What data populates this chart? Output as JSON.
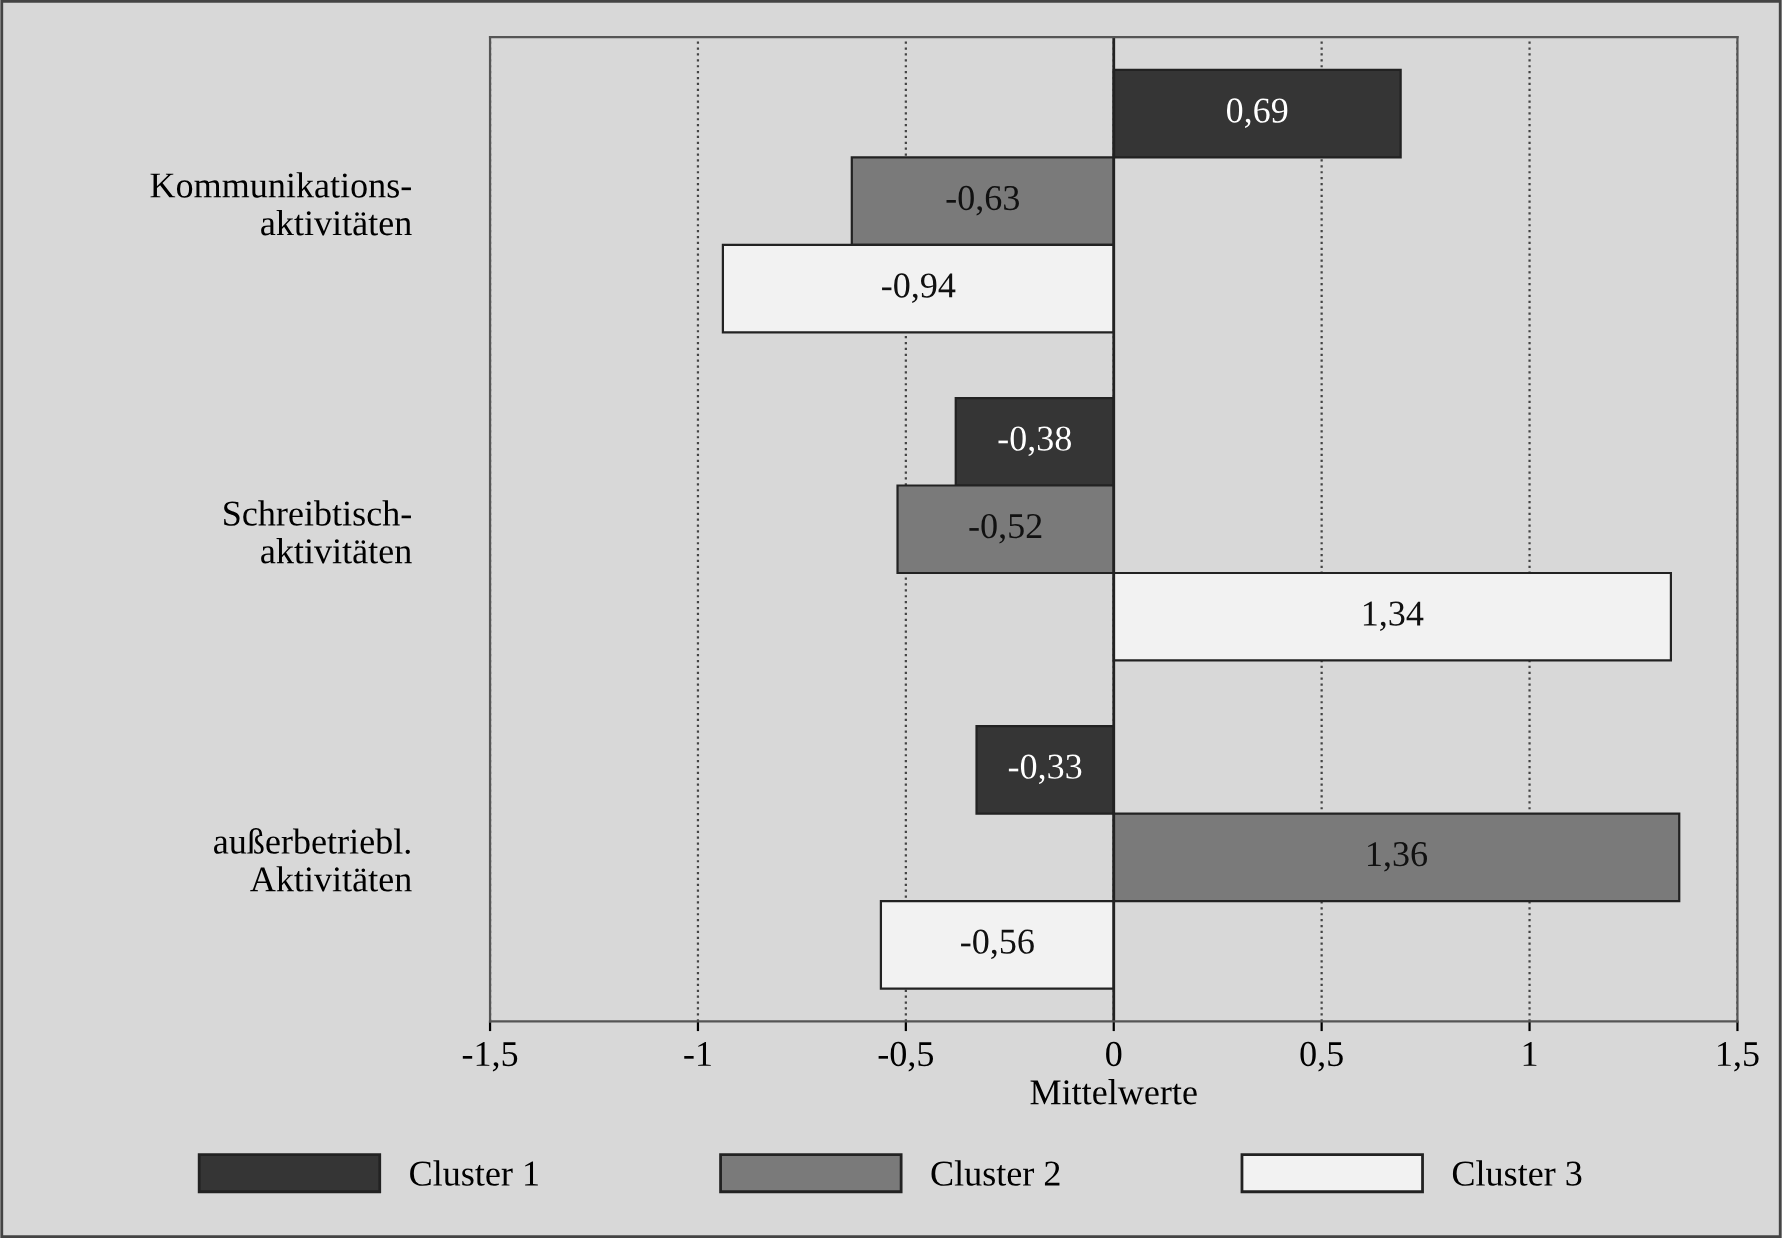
{
  "chart_data": {
    "type": "bar",
    "orientation": "horizontal",
    "xlabel": "Mittelwerte",
    "categories": [
      "Kommunikations-\naktivitäten",
      "Schreibtisch-\naktivitäten",
      "außerbetriebl.\nAktivitäten"
    ],
    "series": [
      {
        "name": "Cluster 1",
        "color": "#353535",
        "values": [
          0.69,
          -0.38,
          -0.33
        ],
        "value_labels": [
          "0,69",
          "-0,38",
          "-0,33"
        ]
      },
      {
        "name": "Cluster 2",
        "color": "#7a7a7a",
        "values": [
          -0.63,
          -0.52,
          1.36
        ],
        "value_labels": [
          "-0,63",
          "-0,52",
          "1,36"
        ]
      },
      {
        "name": "Cluster 3",
        "color": "#f2f2f2",
        "values": [
          -0.94,
          1.34,
          -0.56
        ],
        "value_labels": [
          "-0,94",
          "1,34",
          "-0,56"
        ]
      }
    ],
    "xlim": [
      -1.5,
      1.5
    ],
    "xticks": [
      {
        "value": -1.5,
        "label": "-1,5"
      },
      {
        "value": -1,
        "label": "-1"
      },
      {
        "value": -0.5,
        "label": "-0,5"
      },
      {
        "value": 0,
        "label": "0"
      },
      {
        "value": 0.5,
        "label": "0,5"
      },
      {
        "value": 1,
        "label": "1"
      },
      {
        "value": 1.5,
        "label": "1,5"
      }
    ],
    "grid": "x",
    "legend": "bottom"
  }
}
